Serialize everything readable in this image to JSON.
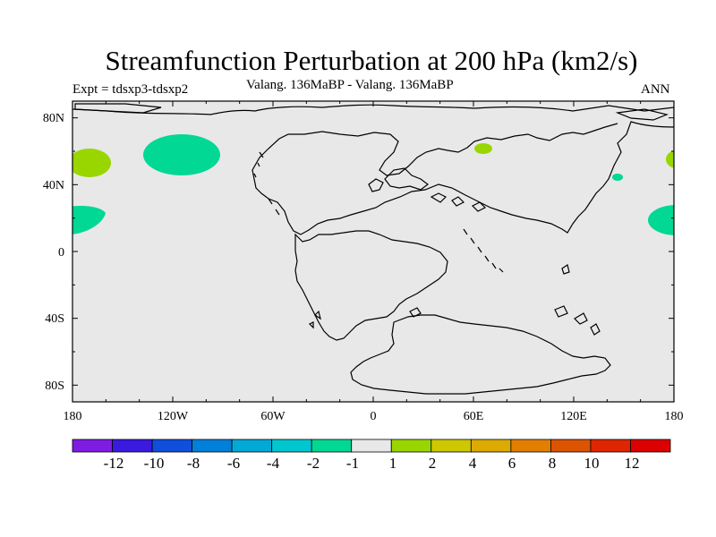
{
  "title": "Streamfunction Perturbation at 200 hPa (km2/s)",
  "left_string": "Expt = tdsxp3-tdsxp2",
  "center_string": "Valang. 136MaBP - Valang. 136MaBP",
  "right_string": "ANN",
  "colors": {
    "map_background": "#e8e8e8",
    "coastline": "#000000",
    "negative_region": "#00d894",
    "positive_region": "#99d600"
  },
  "map": {
    "projection": "cylindrical equidistant",
    "lon_range": [
      -180,
      180
    ],
    "lat_range": [
      -90,
      90
    ],
    "lat_tick_labels": [
      "80N",
      "40N",
      "0",
      "40S",
      "80S"
    ],
    "lat_tick_values": [
      80,
      40,
      0,
      -40,
      -80
    ],
    "lon_tick_labels": [
      "180",
      "120W",
      "60W",
      "0",
      "60E",
      "120E",
      "180"
    ],
    "lon_tick_values": [
      -180,
      -120,
      -60,
      0,
      60,
      120,
      180
    ]
  },
  "colorbar": {
    "colors": [
      "#7f1ce3",
      "#3a1adf",
      "#0f4fdb",
      "#0080da",
      "#00a9d6",
      "#00c6cf",
      "#00d894",
      "#e8e8e8",
      "#99d600",
      "#cdc800",
      "#dcaa00",
      "#e17f00",
      "#dc5400",
      "#de2600",
      "#dd0000"
    ],
    "labels": [
      "-12",
      "-10",
      "-8",
      "-6",
      "-4",
      "-2",
      "-1",
      "1",
      "2",
      "4",
      "6",
      "8",
      "10",
      "12"
    ]
  },
  "regions": [
    {
      "sign": "positive",
      "lon": -165,
      "lat": 52
    },
    {
      "sign": "negative",
      "lon": -175,
      "lat": 20
    },
    {
      "sign": "negative",
      "lon": -115,
      "lat": 58
    },
    {
      "sign": "positive",
      "lon": 67,
      "lat": 62
    },
    {
      "sign": "negative",
      "lon": 147,
      "lat": 44
    },
    {
      "sign": "positive",
      "lon": 178,
      "lat": 55
    },
    {
      "sign": "negative",
      "lon": 174,
      "lat": 19
    }
  ]
}
